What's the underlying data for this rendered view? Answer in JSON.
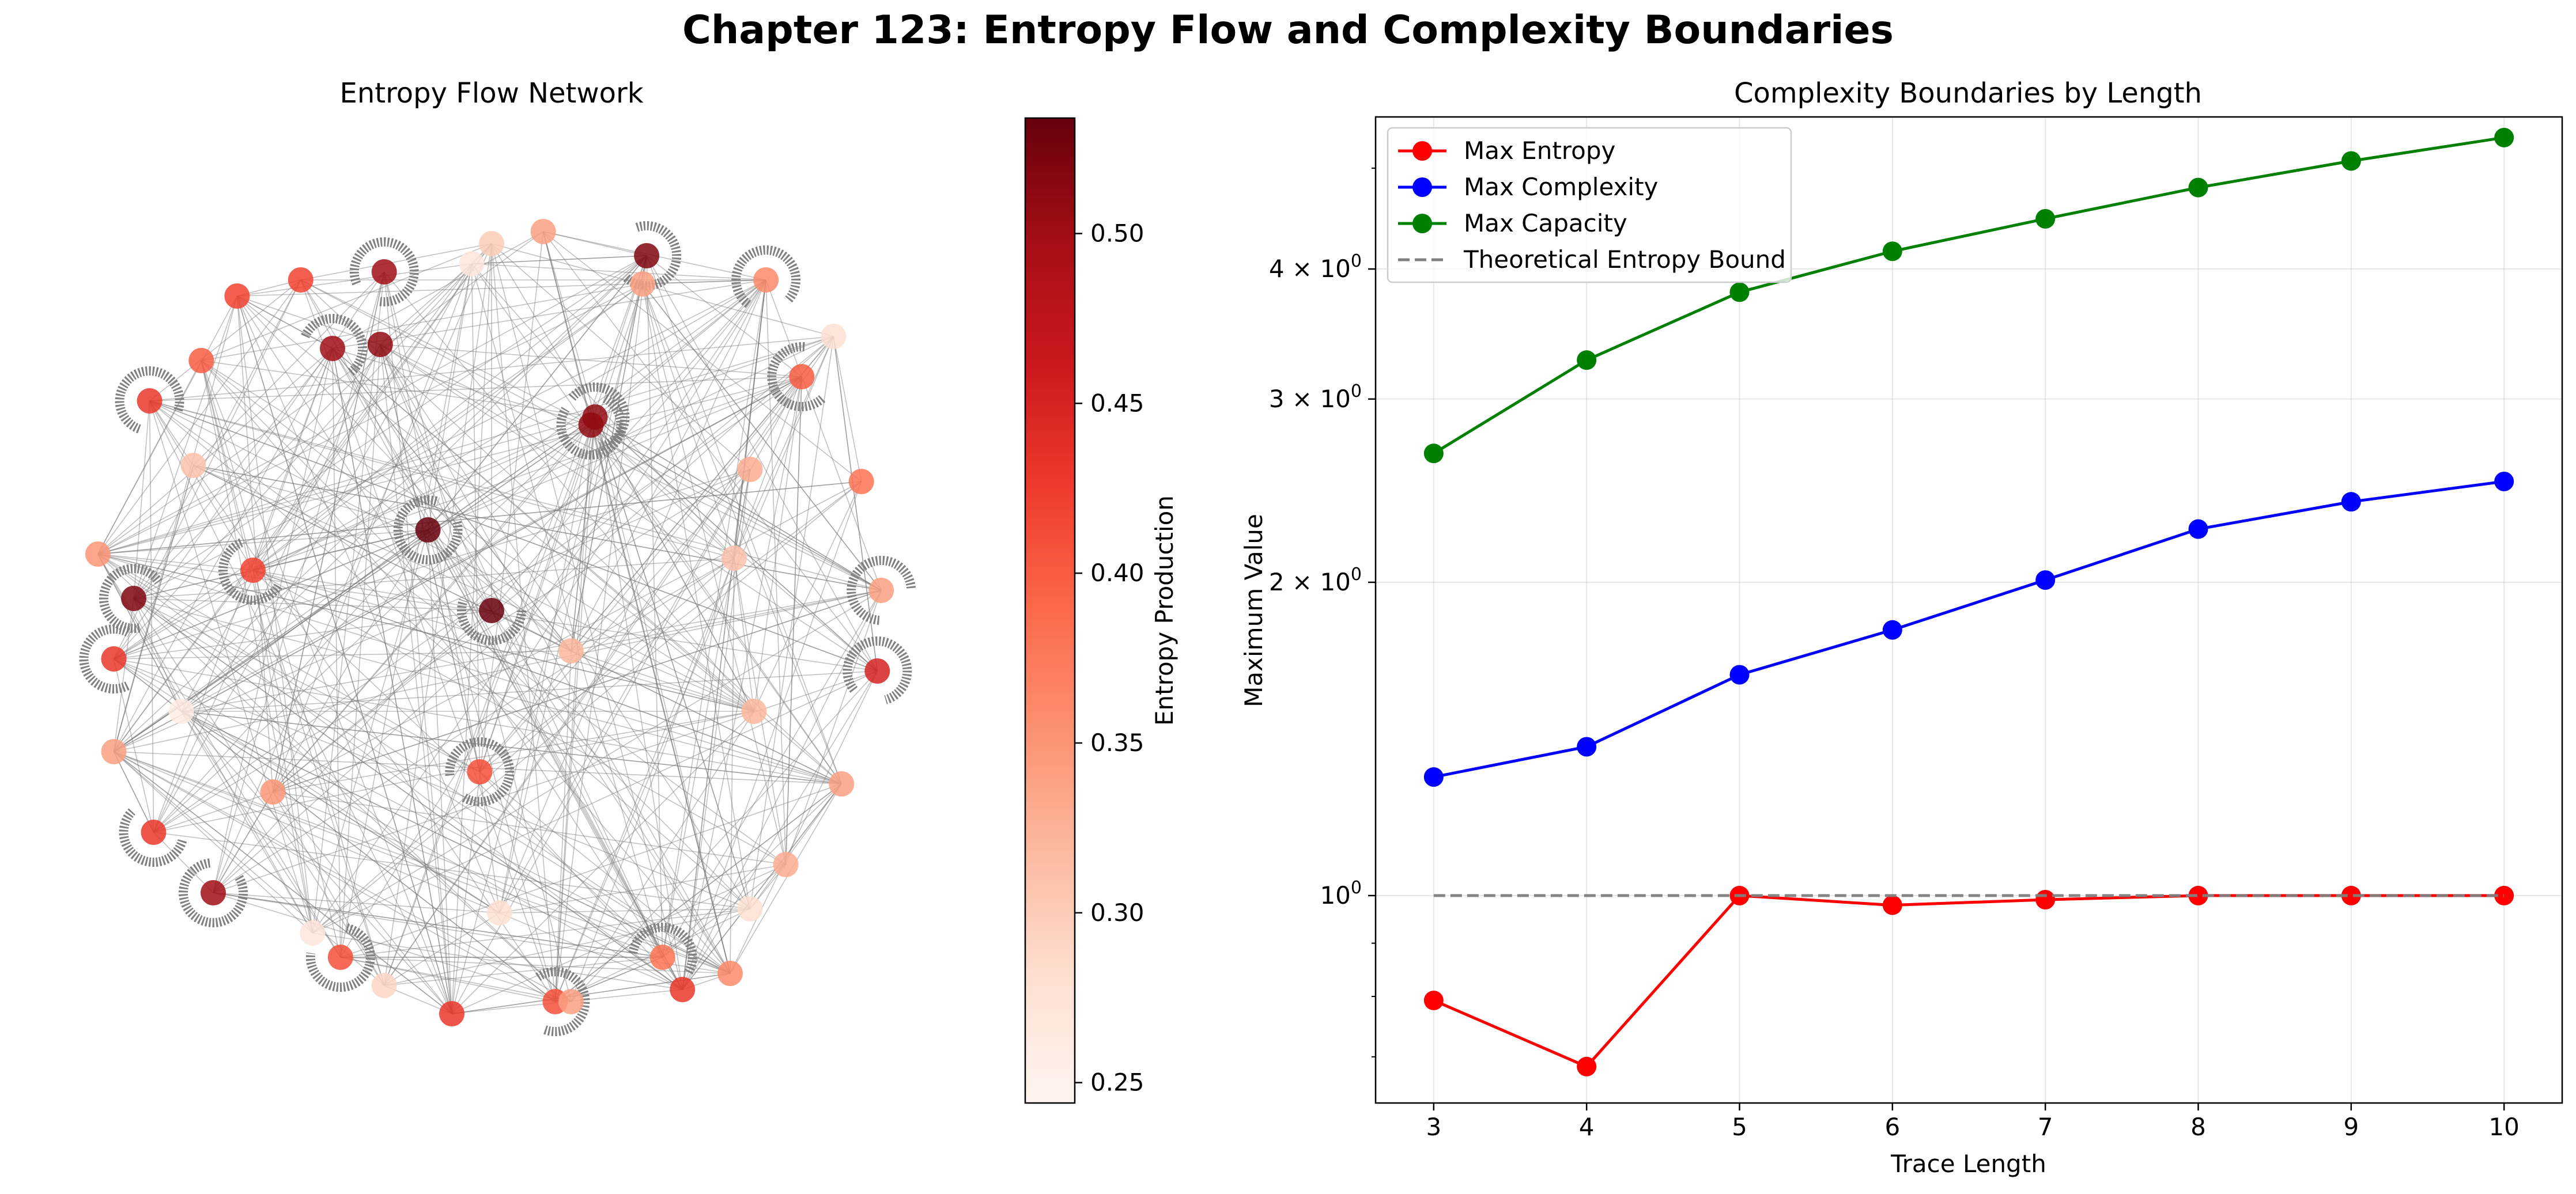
{
  "figure": {
    "title": "Chapter 123: Entropy Flow and Complexity Boundaries"
  },
  "chart_data": [
    {
      "type": "scatter",
      "title": "Entropy Flow Network",
      "colorbar": {
        "label": "Entropy Production",
        "range": [
          0.244,
          0.534
        ],
        "ticks": [
          "0.25",
          "0.30",
          "0.35",
          "0.40",
          "0.45",
          "0.50"
        ],
        "tick_values": [
          0.25,
          0.3,
          0.35,
          0.4,
          0.45,
          0.5
        ],
        "colormap": "Reds"
      },
      "nodes": [
        {
          "x": 0.0,
          "y": 0.0,
          "v": 0.534
        },
        {
          "x": 0.0,
          "y": 0.91,
          "v": 0.3
        },
        {
          "x": 0.38,
          "y": 0.81,
          "v": 0.34
        },
        {
          "x": 0.78,
          "y": 0.58,
          "v": 0.4
        },
        {
          "x": 0.93,
          "y": 0.32,
          "v": 0.38
        },
        {
          "x": 0.98,
          "y": 0.05,
          "v": 0.34
        },
        {
          "x": 0.97,
          "y": -0.15,
          "v": 0.45
        },
        {
          "x": 0.88,
          "y": -0.43,
          "v": 0.34
        },
        {
          "x": 0.74,
          "y": -0.63,
          "v": 0.33
        },
        {
          "x": 0.43,
          "y": -0.86,
          "v": 0.38
        },
        {
          "x": 0.16,
          "y": -0.97,
          "v": 0.41
        },
        {
          "x": -0.1,
          "y": -1.0,
          "v": 0.43
        },
        {
          "x": -0.38,
          "y": -0.86,
          "v": 0.41
        },
        {
          "x": -0.7,
          "y": -0.7,
          "v": 0.5
        },
        {
          "x": -0.85,
          "y": -0.55,
          "v": 0.43
        },
        {
          "x": -0.95,
          "y": -0.35,
          "v": 0.34
        },
        {
          "x": -0.95,
          "y": -0.12,
          "v": 0.43
        },
        {
          "x": -0.99,
          "y": 0.14,
          "v": 0.35
        },
        {
          "x": -0.86,
          "y": 0.52,
          "v": 0.43
        },
        {
          "x": -0.48,
          "y": 0.82,
          "v": 0.42
        },
        {
          "x": -0.27,
          "y": 0.84,
          "v": 0.5
        },
        {
          "x": -0.4,
          "y": 0.65,
          "v": 0.5
        },
        {
          "x": 0.13,
          "y": 0.94,
          "v": 0.34
        },
        {
          "x": 0.39,
          "y": 0.88,
          "v": 0.52
        },
        {
          "x": 0.25,
          "y": 0.46,
          "v": 0.51
        },
        {
          "x": -0.16,
          "y": 0.2,
          "v": 0.534
        },
        {
          "x": -0.6,
          "y": 0.1,
          "v": 0.42
        },
        {
          "x": 0.2,
          "y": -0.1,
          "v": 0.32
        },
        {
          "x": 0.65,
          "y": 0.35,
          "v": 0.33
        },
        {
          "x": -0.75,
          "y": 0.36,
          "v": 0.31
        },
        {
          "x": -0.9,
          "y": 0.03,
          "v": 0.52
        },
        {
          "x": 0.66,
          "y": -0.25,
          "v": 0.32
        },
        {
          "x": -0.78,
          "y": -0.25,
          "v": 0.26
        },
        {
          "x": 0.69,
          "y": 0.82,
          "v": 0.36
        },
        {
          "x": 0.86,
          "y": 0.68,
          "v": 0.28
        },
        {
          "x": -0.55,
          "y": -0.45,
          "v": 0.35
        },
        {
          "x": 0.65,
          "y": -0.74,
          "v": 0.28
        },
        {
          "x": -0.05,
          "y": 0.86,
          "v": 0.27
        },
        {
          "x": -0.73,
          "y": 0.62,
          "v": 0.4
        },
        {
          "x": -0.64,
          "y": 0.78,
          "v": 0.42
        },
        {
          "x": -0.03,
          "y": -0.4,
          "v": 0.41
        },
        {
          "x": 0.26,
          "y": 0.48,
          "v": 0.51
        },
        {
          "x": 0.02,
          "y": -0.75,
          "v": 0.28
        },
        {
          "x": -0.45,
          "y": -0.8,
          "v": 0.27
        },
        {
          "x": 0.6,
          "y": -0.9,
          "v": 0.36
        },
        {
          "x": -0.27,
          "y": -0.93,
          "v": 0.29
        },
        {
          "x": 0.48,
          "y": -0.94,
          "v": 0.43
        },
        {
          "x": 0.61,
          "y": 0.13,
          "v": 0.31
        },
        {
          "x": -0.28,
          "y": 0.66,
          "v": 0.51
        },
        {
          "x": 0.2,
          "y": -0.97,
          "v": 0.34
        }
      ]
    },
    {
      "type": "line",
      "title": "Complexity Boundaries by Length",
      "xlabel": "Trace Length",
      "ylabel": "Maximum Value",
      "yscale": "log",
      "xlim": [
        2.62,
        10.38
      ],
      "ylim": [
        0.632,
        5.6
      ],
      "x_ticks": [
        "3",
        "4",
        "5",
        "6",
        "7",
        "8",
        "9",
        "10"
      ],
      "y_ticks": [
        {
          "value": 1,
          "base": "10",
          "exp": "0"
        },
        {
          "value": 2,
          "base": "2 × 10",
          "exp": "0"
        },
        {
          "value": 3,
          "base": "3 × 10",
          "exp": "0"
        },
        {
          "value": 4,
          "base": "4 × 10",
          "exp": "0"
        }
      ],
      "grid": true,
      "legend_position": "top-left",
      "x": [
        3,
        4,
        5,
        6,
        7,
        8,
        9,
        10
      ],
      "series": [
        {
          "name": "Max Entropy",
          "color": "#ff0000",
          "style": "solid",
          "marker": "circle",
          "values": [
            0.793,
            0.685,
            1.0,
            0.979,
            0.991,
            1.0,
            1.0,
            1.0
          ]
        },
        {
          "name": "Max Complexity",
          "color": "#0000ff",
          "style": "solid",
          "marker": "circle",
          "values": [
            1.3,
            1.39,
            1.63,
            1.8,
            2.01,
            2.25,
            2.39,
            2.5
          ]
        },
        {
          "name": "Max Capacity",
          "color": "#008000",
          "style": "solid",
          "marker": "circle",
          "values": [
            2.66,
            3.27,
            3.8,
            4.16,
            4.47,
            4.79,
            5.08,
            5.35
          ]
        },
        {
          "name": "Theoretical Entropy Bound",
          "color": "#808080",
          "style": "dashed",
          "marker": "none",
          "values": [
            1,
            1,
            1,
            1,
            1,
            1,
            1,
            1
          ]
        }
      ]
    }
  ]
}
